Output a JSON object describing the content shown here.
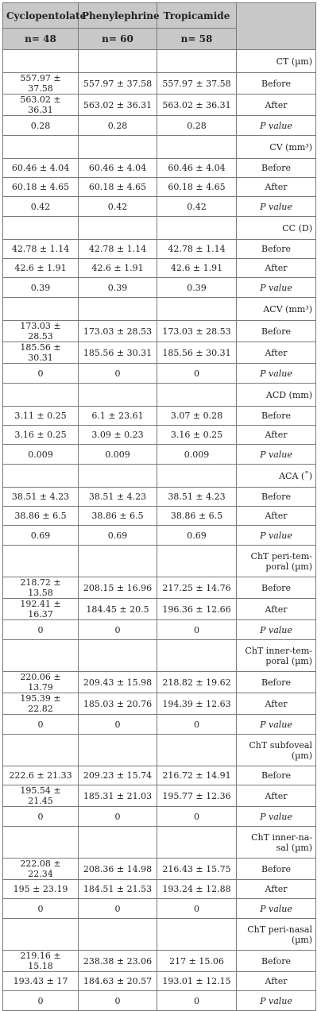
{
  "header": {
    "col1": "Cyclopentolate",
    "col2": "Phenylephrine",
    "col3": "Tropicamide",
    "n1": "n= 48",
    "n2": "n= 60",
    "n3": "n= 58"
  },
  "rows": [
    {
      "k": "section",
      "label": "CT (µm)",
      "h": "r29"
    },
    {
      "k": "data",
      "v": [
        "557.97 ± 37.58",
        "557.97 ± 37.58",
        "557.97 ± 37.58"
      ],
      "label": "Before",
      "h": "r24"
    },
    {
      "k": "data",
      "v": [
        "563.02 ± 36.31",
        "563.02 ± 36.31",
        "563.02 ± 36.31"
      ],
      "label": "After",
      "h": "r24"
    },
    {
      "k": "pval",
      "v": [
        "0.28",
        "0.28",
        "0.28"
      ],
      "label": "P value",
      "h": "r25"
    },
    {
      "k": "section",
      "label": "CV (mm³)",
      "h": "r29"
    },
    {
      "k": "data",
      "v": [
        "60.46 ± 4.04",
        "60.46 ± 4.04",
        "60.46 ± 4.04"
      ],
      "label": "Before",
      "h": "r24"
    },
    {
      "k": "data",
      "v": [
        "60.18 ± 4.65",
        "60.18 ± 4.65",
        "60.18 ± 4.65"
      ],
      "label": "After",
      "h": "r24"
    },
    {
      "k": "pval",
      "v": [
        "0.42",
        "0.42",
        "0.42"
      ],
      "label": "P value",
      "h": "r25"
    },
    {
      "k": "section",
      "label": "CC (D)",
      "h": "r29"
    },
    {
      "k": "data",
      "v": [
        "42.78 ± 1.14",
        "42.78 ± 1.14",
        "42.78 ± 1.14"
      ],
      "label": "Before",
      "h": "r24"
    },
    {
      "k": "data",
      "v": [
        "42.6 ± 1.91",
        "42.6 ± 1.91",
        "42.6 ± 1.91"
      ],
      "label": "After",
      "h": "r24"
    },
    {
      "k": "pval",
      "v": [
        "0.39",
        "0.39",
        "0.39"
      ],
      "label": "P value",
      "h": "r25"
    },
    {
      "k": "section",
      "label": "ACV (mm³)",
      "h": "r29"
    },
    {
      "k": "data",
      "v": [
        "173.03 ± 28.53",
        "173.03 ± 28.53",
        "173.03 ± 28.53"
      ],
      "label": "Before",
      "h": "r24"
    },
    {
      "k": "data",
      "v": [
        "185.56 ± 30.31",
        "185.56 ± 30.31",
        "185.56 ± 30.31"
      ],
      "label": "After",
      "h": "r24"
    },
    {
      "k": "pval",
      "v": [
        "0",
        "0",
        "0"
      ],
      "label": "P value",
      "h": "r25"
    },
    {
      "k": "section",
      "label": "ACD (mm)",
      "h": "r29"
    },
    {
      "k": "data",
      "v": [
        "3.11 ± 0.25",
        "6.1 ± 23.61",
        "3.07 ± 0.28"
      ],
      "label": "Before",
      "h": "r24"
    },
    {
      "k": "data",
      "v": [
        "3.16 ± 0.25",
        "3.09 ± 0.23",
        "3.16 ± 0.25"
      ],
      "label": "After",
      "h": "r24"
    },
    {
      "k": "pval",
      "v": [
        "0.009",
        "0.009",
        "0.009"
      ],
      "label": "P value",
      "h": "r25"
    },
    {
      "k": "section",
      "label": "ACA (˚)",
      "h": "r29"
    },
    {
      "k": "data",
      "v": [
        "38.51 ± 4.23",
        "38.51 ± 4.23",
        "38.51 ± 4.23"
      ],
      "label": "Before",
      "h": "r24"
    },
    {
      "k": "data",
      "v": [
        "38.86 ± 6.5",
        "38.86 ± 6.5",
        "38.86 ± 6.5"
      ],
      "label": "After",
      "h": "r24"
    },
    {
      "k": "pval",
      "v": [
        "0.69",
        "0.69",
        "0.69"
      ],
      "label": "P value",
      "h": "r25"
    },
    {
      "k": "section",
      "label": "ChT peri-tem-poral  (µm)",
      "h": "r40"
    },
    {
      "k": "data",
      "v": [
        "218.72 ± 13.58",
        "208.15 ± 16.96",
        "217.25 ± 14.76"
      ],
      "label": "Before",
      "h": "r24"
    },
    {
      "k": "data",
      "v": [
        "192.41 ± 16.37",
        "184.45 ± 20.5",
        "196.36 ± 12.66"
      ],
      "label": "After",
      "h": "r24"
    },
    {
      "k": "pval",
      "v": [
        "0",
        "0",
        "0"
      ],
      "label": "P value",
      "h": "r25"
    },
    {
      "k": "section",
      "label": "ChT inner-tem-poral (µm)",
      "h": "r40"
    },
    {
      "k": "data",
      "v": [
        "220.06 ± 13.79",
        "209.43 ± 15.98",
        "218.82 ± 19.62"
      ],
      "label": "Before",
      "h": "r24"
    },
    {
      "k": "data",
      "v": [
        "195.39 ± 22.82",
        "185.03 ± 20.76",
        "194.39 ± 12.63"
      ],
      "label": "After",
      "h": "r24"
    },
    {
      "k": "pval",
      "v": [
        "0",
        "0",
        "0"
      ],
      "label": "P value",
      "h": "r25"
    },
    {
      "k": "section",
      "label": "ChT subfoveal (µm)",
      "h": "r40"
    },
    {
      "k": "data",
      "v": [
        "222.6 ± 21.33",
        "209.23 ± 15.74",
        "216.72 ± 14.91"
      ],
      "label": "Before",
      "h": "r24"
    },
    {
      "k": "data",
      "v": [
        "195.54 ± 21.45",
        "185.31 ± 21.03",
        "195.77 ± 12.36"
      ],
      "label": "After",
      "h": "r24"
    },
    {
      "k": "pval",
      "v": [
        "0",
        "0",
        "0"
      ],
      "label": "P value",
      "h": "r25"
    },
    {
      "k": "section",
      "label": "ChT inner-na-sal (µm)",
      "h": "r40"
    },
    {
      "k": "data",
      "v": [
        "222.08 ± 22.34",
        "208.36 ± 14.98",
        "216.43 ± 15.75"
      ],
      "label": "Before",
      "h": "r24"
    },
    {
      "k": "data",
      "v": [
        "195 ± 23.19",
        "184.51 ± 21.53",
        "193.24 ± 12.88"
      ],
      "label": "After",
      "h": "r24"
    },
    {
      "k": "pval",
      "v": [
        "0",
        "0",
        "0"
      ],
      "label": "P value",
      "h": "r25"
    },
    {
      "k": "section",
      "label": "ChT peri-nasal (µm)",
      "h": "r40"
    },
    {
      "k": "data",
      "v": [
        "219.16 ± 15.18",
        "238.38 ± 23.06",
        "217 ± 15.06"
      ],
      "label": "Before",
      "h": "r24"
    },
    {
      "k": "data",
      "v": [
        "193.43 ± 17",
        "184.63 ± 20.57",
        "193.01 ± 12.15"
      ],
      "label": "After",
      "h": "r24"
    },
    {
      "k": "pval",
      "v": [
        "0",
        "0",
        "0"
      ],
      "label": "P value",
      "h": "r25"
    }
  ]
}
